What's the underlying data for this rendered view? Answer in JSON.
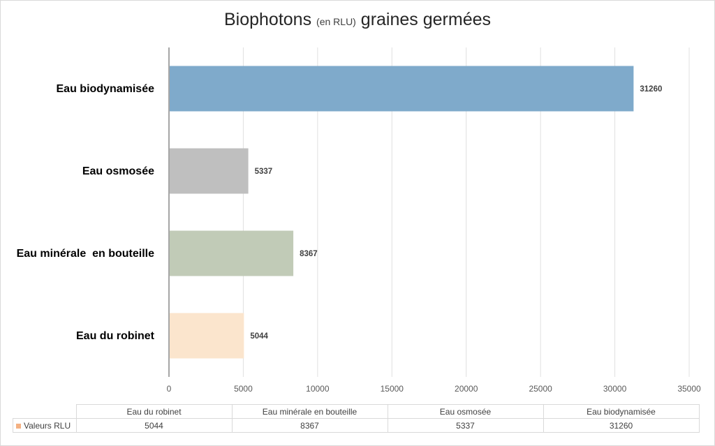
{
  "title": {
    "main": "Biophotons",
    "unit": "(en RLU)",
    "rest": "graines germées"
  },
  "chart_data": {
    "type": "bar",
    "orientation": "horizontal",
    "categories": [
      "Eau du robinet",
      "Eau minérale  en bouteille",
      "Eau osmosée",
      "Eau biodynamisée"
    ],
    "series": [
      {
        "name": "Valeurs RLU",
        "values": [
          5044,
          8367,
          5337,
          31260
        ]
      }
    ],
    "bar_colors": [
      "#fbe5cd",
      "#c1cbb7",
      "#bfbfbf",
      "#7faacb"
    ],
    "legend_color": "#f4b183",
    "xlim": [
      0,
      35000
    ],
    "xticks": [
      0,
      5000,
      10000,
      15000,
      20000,
      25000,
      30000,
      35000
    ],
    "grid": true,
    "data_table": true
  },
  "table": {
    "headers": [
      "Eau du robinet",
      "Eau minérale en bouteille",
      "Eau osmosée",
      "Eau biodynamisée"
    ],
    "row_label": "Valeurs RLU",
    "values": [
      "5044",
      "8367",
      "5337",
      "31260"
    ]
  }
}
